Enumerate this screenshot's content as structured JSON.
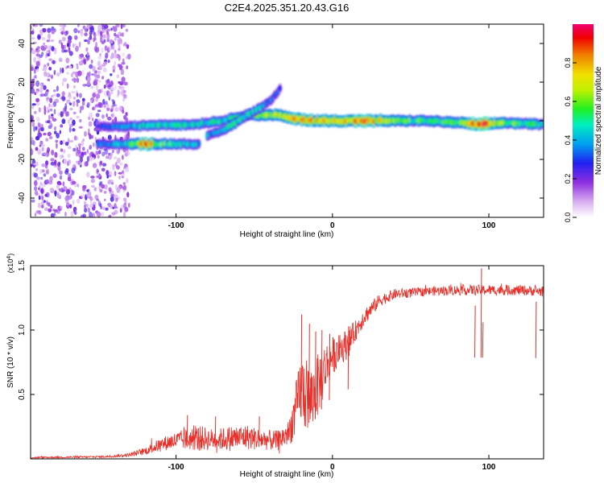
{
  "title": "C2E4.2025.351.20.43.G16",
  "chart_data": [
    {
      "type": "heatmap",
      "name": "spectrogram",
      "xlabel": "Height of straight line (km)",
      "ylabel": "Frequency (Hz)",
      "xlim": [
        -193,
        135
      ],
      "ylim": [
        -50,
        50
      ],
      "xticks": [
        -100,
        0,
        100
      ],
      "yticks": [
        -40,
        -20,
        0,
        20,
        40
      ],
      "colorbar": {
        "label": "Normalized spectral amplitude",
        "range": [
          0,
          1
        ],
        "ticks": [
          "0.0",
          "0.2",
          "0.4",
          "0.6",
          "0.8"
        ],
        "tick_values": [
          0,
          0.2,
          0.4,
          0.6,
          0.8
        ],
        "colors": [
          "#ffffff",
          "#d8b0f0",
          "#9030e0",
          "#2020f0",
          "#00c0f0",
          "#00f0a0",
          "#40f000",
          "#f0f000",
          "#f08000",
          "#f00000",
          "#f00060"
        ]
      },
      "noise_region": {
        "x_from": -193,
        "x_to": -130,
        "intensity": 0.2
      },
      "tracks": [
        {
          "name": "main-line",
          "points": [
            [
              -150,
              -3,
              0.3
            ],
            [
              -130,
              -3,
              0.45
            ],
            [
              -110,
              -2,
              0.5
            ],
            [
              -90,
              -2,
              0.5
            ],
            [
              -70,
              0,
              0.5
            ],
            [
              -55,
              3,
              0.6
            ],
            [
              -45,
              3,
              0.6
            ],
            [
              -35,
              3,
              0.7
            ],
            [
              -25,
              1,
              0.85
            ],
            [
              -10,
              0,
              0.8
            ],
            [
              0,
              0,
              0.8
            ],
            [
              20,
              0,
              0.9
            ],
            [
              40,
              0,
              0.6
            ],
            [
              60,
              0,
              0.55
            ],
            [
              80,
              -1,
              0.6
            ],
            [
              95,
              -2,
              1.0
            ],
            [
              110,
              -1,
              0.6
            ],
            [
              135,
              -2,
              0.55
            ]
          ]
        },
        {
          "name": "lower-line",
          "points": [
            [
              -150,
              -12,
              0.35
            ],
            [
              -130,
              -12,
              0.5
            ],
            [
              -120,
              -12,
              0.9
            ],
            [
              -110,
              -12,
              0.6
            ],
            [
              -95,
              -12,
              0.5
            ],
            [
              -85,
              -12,
              0.4
            ]
          ]
        },
        {
          "name": "rising-branch",
          "points": [
            [
              -80,
              -8,
              0.4
            ],
            [
              -70,
              -5,
              0.5
            ],
            [
              -60,
              0,
              0.55
            ],
            [
              -50,
              5,
              0.5
            ],
            [
              -40,
              10,
              0.4
            ],
            [
              -33,
              17,
              0.3
            ]
          ]
        }
      ]
    },
    {
      "type": "line",
      "name": "snr",
      "xlabel": "Height of straight line (km)",
      "ylabel": "SNR (10 * v/v)",
      "multiplier": "(x10",
      "multiplier_exp": "4",
      "multiplier_close": ")",
      "color": "#e8302a",
      "xlim": [
        -193,
        135
      ],
      "ylim": [
        0,
        1.5
      ],
      "xticks": [
        -100,
        0,
        100
      ],
      "yticks": [
        "0.5",
        "1.0",
        "1.5"
      ],
      "ytick_values": [
        0.5,
        1.0,
        1.5
      ],
      "envelope": [
        [
          -193,
          0.01,
          0.006
        ],
        [
          -180,
          0.012,
          0.006
        ],
        [
          -160,
          0.014,
          0.008
        ],
        [
          -145,
          0.017,
          0.008
        ],
        [
          -130,
          0.03,
          0.015
        ],
        [
          -120,
          0.06,
          0.03
        ],
        [
          -112,
          0.1,
          0.05
        ],
        [
          -105,
          0.13,
          0.06
        ],
        [
          -95,
          0.15,
          0.08
        ],
        [
          -85,
          0.16,
          0.1
        ],
        [
          -75,
          0.15,
          0.08
        ],
        [
          -65,
          0.16,
          0.1
        ],
        [
          -55,
          0.17,
          0.1
        ],
        [
          -45,
          0.15,
          0.08
        ],
        [
          -35,
          0.14,
          0.08
        ],
        [
          -28,
          0.2,
          0.1
        ],
        [
          -24,
          0.35,
          0.2
        ],
        [
          -20,
          0.55,
          0.28
        ],
        [
          -17,
          0.5,
          0.3
        ],
        [
          -14,
          0.45,
          0.25
        ],
        [
          -10,
          0.55,
          0.25
        ],
        [
          -5,
          0.7,
          0.2
        ],
        [
          0,
          0.8,
          0.15
        ],
        [
          5,
          0.85,
          0.12
        ],
        [
          10,
          0.9,
          0.12
        ],
        [
          15,
          1.0,
          0.08
        ],
        [
          20,
          1.1,
          0.07
        ],
        [
          30,
          1.23,
          0.05
        ],
        [
          40,
          1.28,
          0.04
        ],
        [
          60,
          1.3,
          0.035
        ],
        [
          80,
          1.31,
          0.04
        ],
        [
          100,
          1.31,
          0.04
        ],
        [
          120,
          1.31,
          0.04
        ],
        [
          135,
          1.3,
          0.04
        ]
      ],
      "spikes": [
        [
          -20,
          1.12
        ],
        [
          -15,
          1.05
        ],
        [
          -11,
          0.99
        ],
        [
          -7,
          1.0
        ],
        [
          -2,
          0.97
        ],
        [
          10,
          1.03
        ],
        [
          -93,
          0.34
        ],
        [
          -75,
          0.33
        ],
        [
          -47,
          0.33
        ],
        [
          91,
          1.19
        ],
        [
          96,
          1.06
        ],
        [
          130,
          1.22
        ],
        [
          95,
          1.48
        ]
      ]
    }
  ]
}
